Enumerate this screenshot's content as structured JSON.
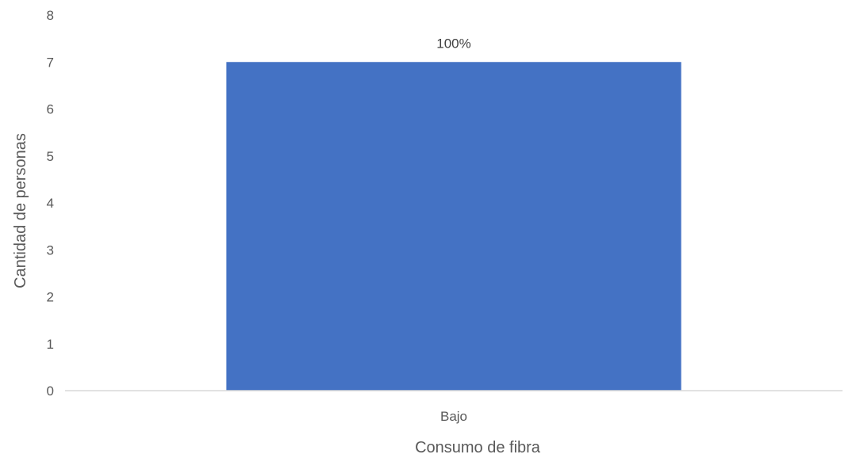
{
  "chart_data": {
    "type": "bar",
    "categories": [
      "Bajo"
    ],
    "values": [
      7
    ],
    "data_labels": [
      "100%"
    ],
    "xlabel": "Consumo de fibra",
    "ylabel": "Cantidad de personas",
    "ylim": [
      0,
      8
    ],
    "yticks": [
      "0",
      "1",
      "2",
      "3",
      "4",
      "5",
      "6",
      "7",
      "8"
    ],
    "grid": false,
    "legend": "none",
    "colors": {
      "bar": "#4472C4",
      "axis_line": "#D9D9D9",
      "text": "#595959"
    }
  }
}
